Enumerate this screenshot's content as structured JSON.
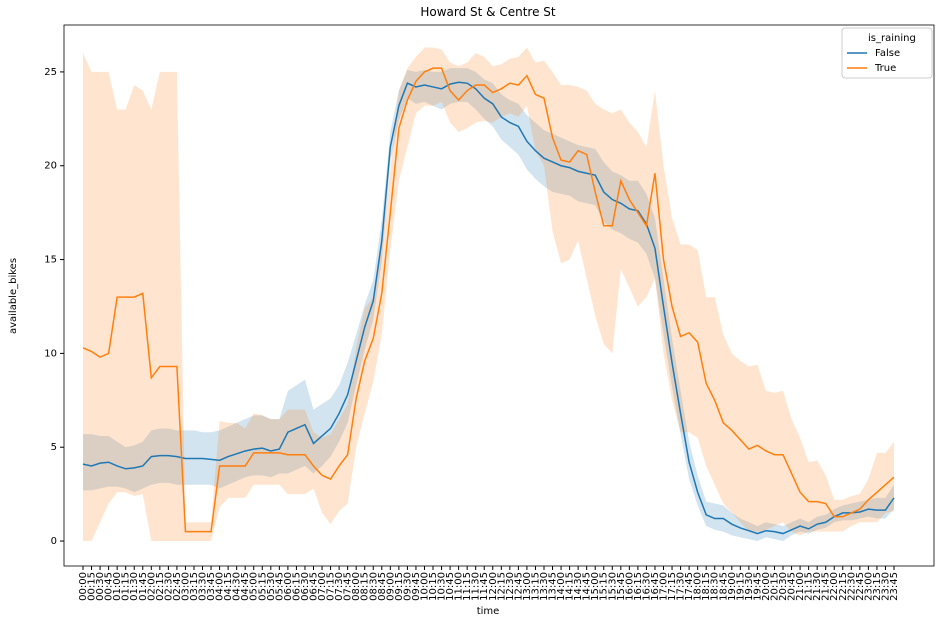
{
  "chart_data": {
    "type": "line",
    "title": "Howard St & Centre St",
    "xlabel": "time",
    "ylabel": "available_bikes",
    "legend_title": "is_raining",
    "legend": "upper right",
    "categories": [
      "00:00",
      "00:15",
      "00:30",
      "00:45",
      "01:00",
      "01:15",
      "01:30",
      "01:45",
      "02:00",
      "02:15",
      "02:30",
      "02:45",
      "03:00",
      "03:15",
      "03:30",
      "03:45",
      "04:00",
      "04:15",
      "04:30",
      "04:45",
      "05:00",
      "05:15",
      "05:30",
      "05:45",
      "06:00",
      "06:15",
      "06:30",
      "06:45",
      "07:00",
      "07:15",
      "07:30",
      "07:45",
      "08:00",
      "08:15",
      "08:30",
      "08:45",
      "09:00",
      "09:15",
      "09:30",
      "09:45",
      "10:00",
      "10:15",
      "10:30",
      "10:45",
      "11:00",
      "11:15",
      "11:30",
      "11:45",
      "12:00",
      "12:15",
      "12:30",
      "12:45",
      "13:00",
      "13:15",
      "13:30",
      "13:45",
      "14:00",
      "14:15",
      "14:30",
      "14:45",
      "15:00",
      "15:15",
      "15:30",
      "15:45",
      "16:00",
      "16:15",
      "16:30",
      "16:45",
      "17:00",
      "17:15",
      "17:30",
      "17:45",
      "18:00",
      "18:15",
      "18:30",
      "18:45",
      "19:00",
      "19:15",
      "19:30",
      "19:45",
      "20:00",
      "20:15",
      "20:30",
      "20:45",
      "21:00",
      "21:15",
      "21:30",
      "21:45",
      "22:00",
      "22:15",
      "22:30",
      "22:45",
      "23:00",
      "23:15",
      "23:30",
      "23:45"
    ],
    "ylim": [
      -1.33,
      27.5
    ],
    "yticks": [
      0,
      5,
      10,
      15,
      20,
      25
    ],
    "series": [
      {
        "name": "False",
        "color": "#1f77b4",
        "values": [
          4.1,
          4.0,
          4.15,
          4.2,
          4.0,
          3.85,
          3.9,
          4.0,
          4.5,
          4.55,
          4.55,
          4.5,
          4.4,
          4.4,
          4.4,
          4.35,
          4.3,
          4.5,
          4.65,
          4.8,
          4.9,
          4.95,
          4.8,
          4.9,
          5.8,
          6.0,
          6.2,
          5.2,
          5.6,
          6.0,
          6.8,
          7.8,
          9.6,
          11.4,
          12.8,
          16.0,
          21.0,
          23.2,
          24.4,
          24.2,
          24.3,
          24.2,
          24.1,
          24.35,
          24.45,
          24.4,
          24.1,
          23.6,
          23.3,
          22.6,
          22.3,
          22.1,
          21.3,
          20.8,
          20.4,
          20.2,
          20.0,
          19.9,
          19.7,
          19.6,
          19.5,
          18.6,
          18.2,
          18.0,
          17.7,
          17.6,
          16.9,
          15.6,
          12.5,
          9.5,
          6.8,
          4.2,
          2.6,
          1.4,
          1.2,
          1.2,
          0.9,
          0.7,
          0.55,
          0.4,
          0.55,
          0.5,
          0.4,
          0.6,
          0.8,
          0.65,
          0.9,
          1.0,
          1.3,
          1.5,
          1.5,
          1.55,
          1.7,
          1.65,
          1.65,
          2.3
        ],
        "ci_lower": [
          2.7,
          2.7,
          2.8,
          2.9,
          2.9,
          2.8,
          2.6,
          2.8,
          3.0,
          3.1,
          3.1,
          3.0,
          3.0,
          3.0,
          3.0,
          3.0,
          2.8,
          3.0,
          3.2,
          3.4,
          3.5,
          3.5,
          3.4,
          3.6,
          3.6,
          3.8,
          4.0,
          3.6,
          4.0,
          4.5,
          5.3,
          6.3,
          8.3,
          10.2,
          11.8,
          14.9,
          20.2,
          22.4,
          23.6,
          23.3,
          23.4,
          23.2,
          23.0,
          23.3,
          23.4,
          23.4,
          23.0,
          22.5,
          22.1,
          21.4,
          21.0,
          20.6,
          19.8,
          19.3,
          18.9,
          18.6,
          18.5,
          18.4,
          18.1,
          18.0,
          17.9,
          17.0,
          16.6,
          16.4,
          16.1,
          15.9,
          15.3,
          14.0,
          11.0,
          8.2,
          5.7,
          3.3,
          1.9,
          0.8,
          0.6,
          0.5,
          0.3,
          0.2,
          0.1,
          0.0,
          0.2,
          0.1,
          0.0,
          0.3,
          0.5,
          0.4,
          0.6,
          0.7,
          1.0,
          1.1,
          1.1,
          1.2,
          1.3,
          1.2,
          1.2,
          1.7
        ],
        "ci_upper": [
          5.7,
          5.7,
          5.6,
          5.6,
          5.3,
          5.0,
          5.1,
          5.3,
          5.9,
          6.0,
          6.0,
          5.9,
          5.9,
          5.9,
          5.8,
          5.8,
          5.9,
          6.1,
          6.3,
          6.5,
          6.7,
          6.7,
          6.5,
          6.5,
          8.0,
          8.3,
          8.6,
          7.0,
          7.3,
          7.6,
          8.3,
          9.5,
          11.0,
          12.6,
          13.9,
          17.1,
          21.8,
          24.0,
          25.1,
          25.0,
          25.1,
          25.0,
          25.0,
          25.2,
          25.2,
          25.2,
          25.0,
          24.6,
          24.4,
          23.8,
          23.5,
          23.3,
          22.7,
          22.3,
          21.9,
          21.7,
          21.5,
          21.3,
          21.1,
          21.0,
          20.9,
          20.2,
          19.7,
          19.5,
          19.2,
          19.2,
          18.5,
          17.2,
          14.0,
          10.8,
          8.0,
          5.3,
          3.5,
          2.1,
          2.0,
          1.9,
          1.5,
          1.2,
          1.0,
          0.8,
          1.0,
          0.9,
          0.8,
          1.0,
          1.2,
          1.0,
          1.3,
          1.4,
          1.7,
          1.9,
          2.0,
          2.1,
          2.2,
          2.3,
          2.3,
          3.0
        ]
      },
      {
        "name": "True",
        "color": "#ff7f0e",
        "values": [
          10.3,
          10.1,
          9.8,
          10.0,
          13.0,
          13.0,
          13.0,
          13.2,
          8.7,
          9.3,
          9.3,
          9.3,
          0.5,
          0.5,
          0.5,
          0.5,
          4.0,
          4.0,
          4.0,
          4.0,
          4.7,
          4.7,
          4.7,
          4.7,
          4.6,
          4.6,
          4.6,
          4.0,
          3.5,
          3.3,
          4.0,
          4.6,
          7.6,
          9.6,
          10.8,
          13.2,
          17.5,
          22.0,
          23.5,
          24.5,
          25.0,
          25.2,
          25.2,
          24.0,
          23.5,
          24.0,
          24.3,
          24.3,
          23.9,
          24.1,
          24.4,
          24.3,
          24.8,
          23.8,
          23.6,
          21.5,
          20.3,
          20.2,
          20.8,
          20.6,
          18.6,
          16.8,
          16.8,
          19.2,
          18.2,
          17.5,
          16.8,
          19.6,
          15.0,
          12.5,
          10.9,
          11.1,
          10.6,
          8.4,
          7.5,
          6.3,
          5.9,
          5.4,
          4.9,
          5.1,
          4.8,
          4.6,
          4.6,
          3.6,
          2.6,
          2.1,
          2.1,
          2.0,
          1.3,
          1.3,
          1.5,
          1.7,
          2.2,
          2.6,
          3.0,
          3.4
        ],
        "ci_lower": [
          0,
          0,
          1,
          2,
          2.6,
          2.6,
          2.4,
          2.5,
          0,
          0,
          0,
          0,
          0,
          0,
          0,
          0,
          1.8,
          2.3,
          2.3,
          2.3,
          3.0,
          3.0,
          3.0,
          3.0,
          2.5,
          2.5,
          2.5,
          2.8,
          1.5,
          0.9,
          1.6,
          2.0,
          5.0,
          6.8,
          8.5,
          11.0,
          15.5,
          19.2,
          21.0,
          22.8,
          23.2,
          23.2,
          23.4,
          22.3,
          21.8,
          22.0,
          22.3,
          22.4,
          22.3,
          22.6,
          22.8,
          22.6,
          23.2,
          20.8,
          20.0,
          16.5,
          14.8,
          15.0,
          16.0,
          14.0,
          12.0,
          10.5,
          10.0,
          14.5,
          13.5,
          12.5,
          13.0,
          14.0,
          10.0,
          7.5,
          5.8,
          5.8,
          5.5,
          4.0,
          3.0,
          2.0,
          1.5,
          1.0,
          0.5,
          0.5,
          0.6,
          0.8,
          1.0,
          0.5,
          0.3,
          0.5,
          0.5,
          0.5,
          0.5,
          0.5,
          0.8,
          1.0,
          1.0,
          1.0,
          1.5,
          1.6
        ],
        "ci_upper": [
          26.0,
          25.0,
          25.0,
          25.0,
          23.0,
          23.0,
          24.3,
          24.0,
          23.0,
          25.0,
          25.0,
          25.0,
          1.0,
          1.0,
          1.0,
          1.0,
          6.4,
          6.3,
          6.3,
          6.0,
          6.8,
          6.7,
          6.5,
          6.5,
          7.0,
          7.0,
          7.0,
          5.8,
          5.5,
          5.7,
          6.5,
          7.3,
          10.3,
          12.4,
          13.0,
          15.7,
          19.8,
          24.0,
          25.2,
          25.8,
          26.3,
          26.3,
          26.2,
          25.5,
          25.3,
          25.5,
          26.0,
          25.8,
          25.3,
          25.4,
          25.7,
          25.8,
          26.3,
          25.5,
          25.6,
          25.0,
          24.3,
          24.3,
          24.2,
          24.0,
          23.3,
          23.0,
          22.8,
          23.0,
          22.3,
          21.8,
          21.0,
          24.0,
          20.0,
          17.2,
          15.8,
          15.8,
          15.5,
          13.0,
          13.0,
          11.0,
          10.0,
          9.6,
          9.3,
          9.4,
          8.0,
          7.9,
          8.0,
          6.5,
          5.5,
          4.2,
          4.3,
          3.5,
          2.2,
          2.2,
          2.4,
          2.5,
          3.3,
          4.7,
          4.7,
          5.3
        ]
      }
    ]
  }
}
